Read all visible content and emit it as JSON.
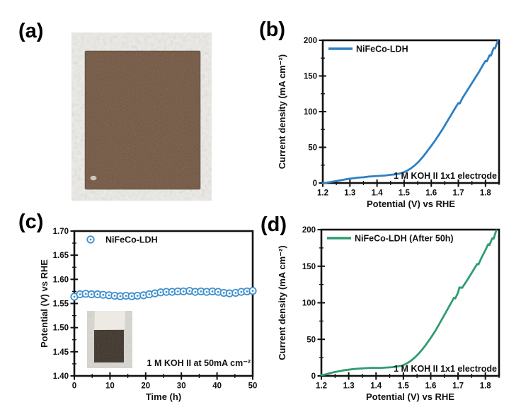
{
  "panels": {
    "a": {
      "label": "(a)"
    },
    "b": {
      "label": "(b)"
    },
    "c": {
      "label": "(c)"
    },
    "d": {
      "label": "(d)"
    }
  },
  "photo_a": {
    "background_color": "#edece8",
    "plate_color": "#6d4f39"
  },
  "photo_inset": {
    "background_color": "#d7d6d0",
    "clip_color": "#eceae2",
    "electrode_color": "#33291f"
  },
  "chart_data": [
    {
      "id": "b",
      "type": "line",
      "xlabel": "Potential (V) vs RHE",
      "ylabel": "Current density (mA cm⁻²)",
      "xlim": [
        1.2,
        1.85
      ],
      "ylim": [
        0,
        200
      ],
      "xticks": [
        "1.2",
        "1.3",
        "1.4",
        "1.5",
        "1.6",
        "1.7",
        "1.8"
      ],
      "yticks": [
        "0",
        "50",
        "100",
        "150",
        "200"
      ],
      "xminor": 0.05,
      "yminor": 25,
      "grid": false,
      "legend": {
        "label": "NiFeCo-LDH",
        "marker": "line",
        "position": "top-left"
      },
      "annotation": "1 M KOH II 1x1 electrode",
      "series": [
        {
          "name": "NiFeCo-LDH",
          "color": "#2f80c3",
          "marker": "none",
          "x": [
            1.2,
            1.215,
            1.23,
            1.245,
            1.26,
            1.275,
            1.29,
            1.31,
            1.33,
            1.35,
            1.37,
            1.39,
            1.41,
            1.43,
            1.45,
            1.465,
            1.48,
            1.495,
            1.51,
            1.525,
            1.54,
            1.555,
            1.57,
            1.585,
            1.6,
            1.615,
            1.63,
            1.645,
            1.66,
            1.675,
            1.69,
            1.7,
            1.705,
            1.715,
            1.73,
            1.745,
            1.76,
            1.775,
            1.79,
            1.8,
            1.805,
            1.815,
            1.82,
            1.83,
            1.835,
            1.845
          ],
          "y": [
            0,
            0.5,
            1.5,
            2.5,
            3.5,
            4.5,
            5.5,
            6.5,
            7.5,
            8,
            9,
            9.5,
            10,
            10.5,
            11.5,
            12,
            13,
            14.5,
            17,
            20.5,
            25,
            30.5,
            37,
            44.5,
            52,
            60,
            68.5,
            77.5,
            87,
            96.5,
            106,
            112,
            111.5,
            119,
            128,
            137,
            146,
            155,
            165,
            171,
            170.5,
            179,
            178.5,
            189,
            188.5,
            199
          ]
        }
      ]
    },
    {
      "id": "c",
      "type": "scatter",
      "xlabel": "Time (h)",
      "ylabel": "Potential (V) vs RHE",
      "xlim": [
        0,
        50
      ],
      "ylim": [
        1.4,
        1.7
      ],
      "xticks": [
        "0",
        "10",
        "20",
        "30",
        "40",
        "50"
      ],
      "yticks": [
        "1.40",
        "1.45",
        "1.50",
        "1.55",
        "1.60",
        "1.65",
        "1.70"
      ],
      "xminor": 5,
      "yminor": 0.025,
      "grid": false,
      "legend": {
        "label": "NiFeCo-LDH",
        "marker": "circle",
        "position": "top-left"
      },
      "annotation": "1 M KOH II at 50mA cm⁻²",
      "series": [
        {
          "name": "NiFeCo-LDH",
          "color": "#3f8fcd",
          "marker": "circle-dot",
          "x": [
            0,
            1.6,
            3.2,
            4.8,
            6.5,
            8.1,
            9.7,
            11.3,
            12.9,
            14.5,
            16.1,
            17.7,
            19.4,
            21.0,
            22.6,
            24.2,
            25.8,
            27.4,
            29.0,
            30.6,
            32.3,
            33.9,
            35.5,
            37.1,
            38.7,
            40.3,
            41.9,
            43.5,
            45.2,
            46.8,
            48.4,
            50.0
          ],
          "y": [
            1.564,
            1.569,
            1.57,
            1.569,
            1.569,
            1.568,
            1.567,
            1.566,
            1.565,
            1.566,
            1.565,
            1.566,
            1.567,
            1.569,
            1.571,
            1.573,
            1.574,
            1.574,
            1.575,
            1.575,
            1.576,
            1.574,
            1.575,
            1.574,
            1.575,
            1.574,
            1.572,
            1.571,
            1.572,
            1.574,
            1.575,
            1.576
          ]
        }
      ]
    },
    {
      "id": "d",
      "type": "line",
      "xlabel": "Potential (V) vs RHE",
      "ylabel": "Current density (mA cm⁻²)",
      "xlim": [
        1.2,
        1.85
      ],
      "ylim": [
        0,
        200
      ],
      "xticks": [
        "1.2",
        "1.3",
        "1.4",
        "1.5",
        "1.6",
        "1.7",
        "1.8"
      ],
      "yticks": [
        "0",
        "50",
        "100",
        "150",
        "200"
      ],
      "xminor": 0.05,
      "yminor": 25,
      "grid": false,
      "legend": {
        "label": "NiFeCo-LDH (After 50h)",
        "marker": "line",
        "position": "top-left"
      },
      "annotation": "1 M KOH II 1x1 electrode",
      "series": [
        {
          "name": "NiFeCo-LDH (After 50h)",
          "color": "#2f9d70",
          "marker": "none",
          "x": [
            1.2,
            1.215,
            1.23,
            1.245,
            1.26,
            1.28,
            1.3,
            1.32,
            1.34,
            1.36,
            1.38,
            1.4,
            1.42,
            1.44,
            1.46,
            1.48,
            1.495,
            1.51,
            1.525,
            1.54,
            1.555,
            1.57,
            1.585,
            1.6,
            1.615,
            1.63,
            1.645,
            1.66,
            1.675,
            1.685,
            1.69,
            1.7,
            1.705,
            1.715,
            1.73,
            1.745,
            1.76,
            1.77,
            1.775,
            1.785,
            1.8,
            1.81,
            1.815,
            1.825,
            1.83,
            1.84
          ],
          "y": [
            1,
            2,
            3.5,
            5,
            6,
            7.5,
            8.5,
            9.5,
            10,
            10.5,
            11,
            11,
            11,
            11.5,
            12,
            13,
            14,
            16.5,
            20,
            24.5,
            30,
            36.5,
            44,
            52,
            60.5,
            70,
            80,
            90,
            100,
            107,
            106,
            114,
            121,
            120.5,
            129,
            138,
            147,
            153,
            152.5,
            161,
            172,
            180,
            179,
            188,
            187.5,
            199
          ]
        }
      ]
    }
  ]
}
